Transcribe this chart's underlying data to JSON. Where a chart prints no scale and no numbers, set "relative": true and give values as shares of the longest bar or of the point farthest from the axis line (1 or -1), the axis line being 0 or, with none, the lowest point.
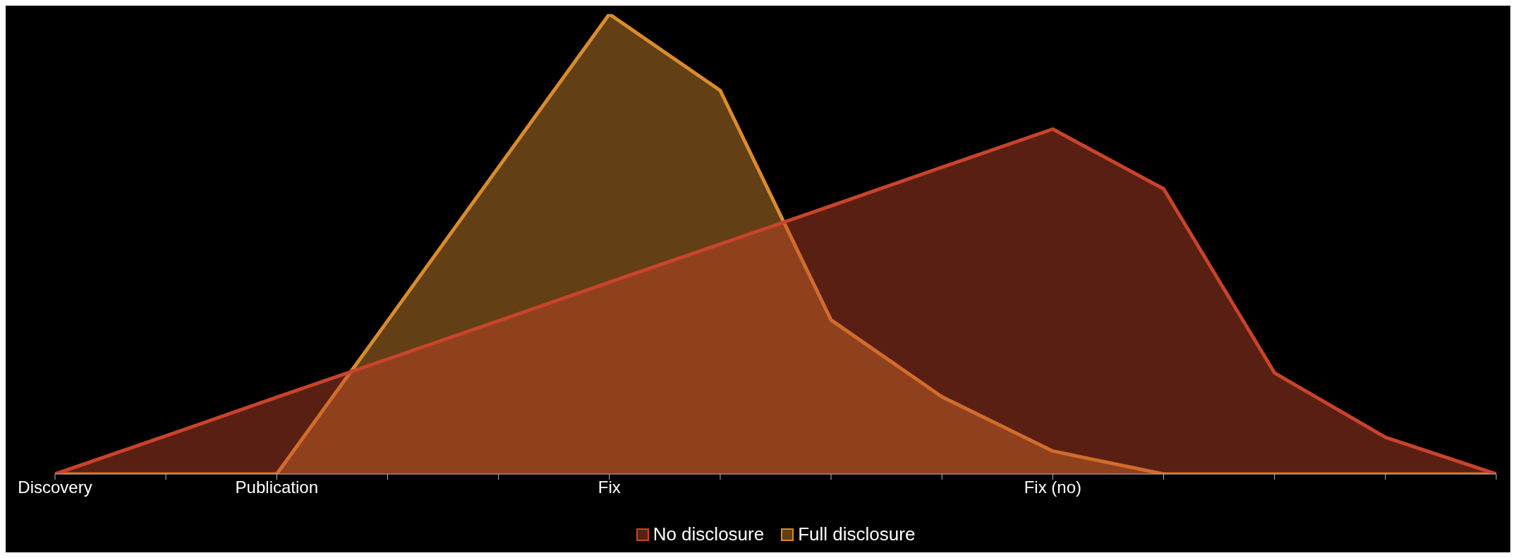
{
  "chart_data": {
    "type": "area",
    "relative": true,
    "categories": [
      "Discovery",
      null,
      "Publication",
      null,
      null,
      "Fix",
      null,
      null,
      null,
      "Fix (no)",
      null,
      null,
      null,
      null
    ],
    "series": [
      {
        "name": "No disclosure",
        "color": "#c8442a",
        "values": [
          0,
          0.083,
          0.167,
          0.25,
          0.333,
          0.417,
          0.5,
          0.583,
          0.667,
          0.75,
          0.62,
          0.22,
          0.08,
          0
        ]
      },
      {
        "name": "Full disclosure",
        "color": "#d98c2c",
        "values": [
          0,
          0,
          0,
          0.333,
          0.667,
          1,
          0.834,
          0.335,
          0.168,
          0.05,
          0,
          0,
          0,
          0
        ]
      }
    ],
    "legend": "bottom",
    "grid": false
  }
}
